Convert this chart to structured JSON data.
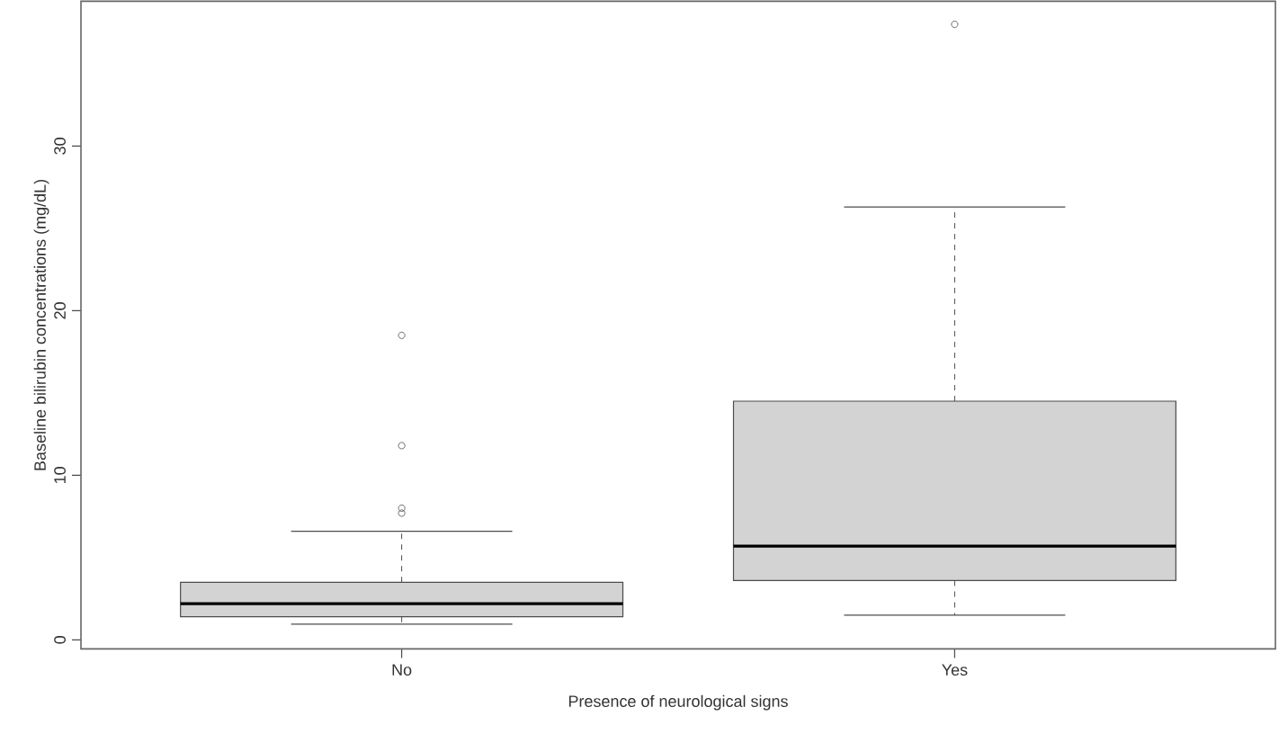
{
  "chart_data": {
    "type": "box",
    "xlabel": "Presence of neurological signs",
    "ylabel": "Baseline bilirubin concentrations (mg/dL)",
    "categories": [
      "No",
      "Yes"
    ],
    "color": "#d3d3d3",
    "boxes": [
      {
        "low": 0.95,
        "q1": 1.4,
        "median": 2.2,
        "q3": 3.5,
        "high": 6.6,
        "outliers": [
          7.7,
          8.0,
          11.8,
          18.5
        ]
      },
      {
        "low": 1.5,
        "q1": 3.6,
        "median": 5.7,
        "q3": 14.5,
        "high": 26.3,
        "outliers": [
          37.4
        ]
      }
    ],
    "ylim": [
      -0.55,
      38.8
    ],
    "yticks": [
      0,
      10,
      20,
      30
    ],
    "grid": false
  }
}
